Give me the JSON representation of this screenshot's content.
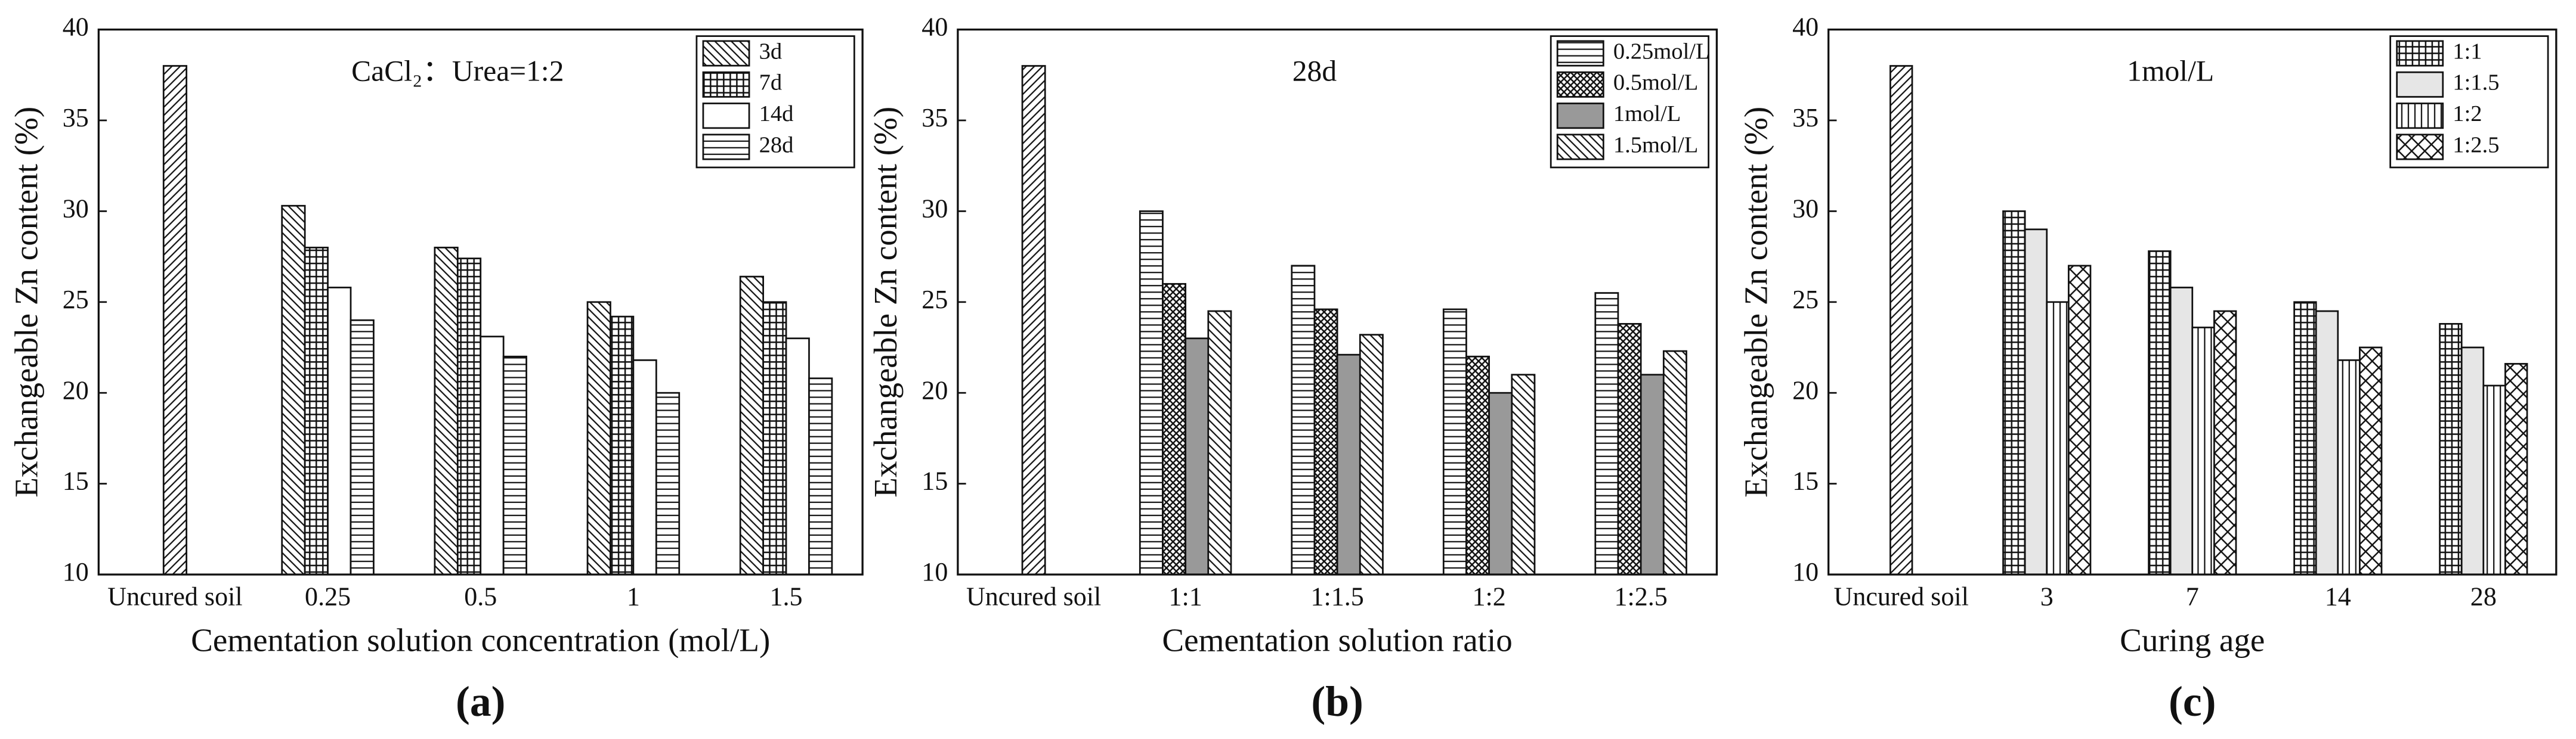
{
  "chart_data": [
    {
      "type": "bar",
      "panel": "(a)",
      "annotation": "CaCl₂：Urea=1:2",
      "x_label": "Cementation solution concentration (mol/L)",
      "y_label": "Exchangeable Zn content (%)",
      "categories": [
        "Uncured soil",
        "0.25",
        "0.5",
        "1",
        "1.5"
      ],
      "uncured_soil": 38,
      "uncured_pattern": "slash",
      "series": [
        {
          "name": "3d",
          "pattern": "backslash",
          "values": [
            null,
            30.3,
            28,
            25,
            26.4
          ]
        },
        {
          "name": "7d",
          "pattern": "grid",
          "values": [
            null,
            28,
            27.4,
            24.2,
            25
          ]
        },
        {
          "name": "14d",
          "pattern": "white",
          "values": [
            null,
            25.8,
            23.1,
            21.8,
            23
          ]
        },
        {
          "name": "28d",
          "pattern": "horizontal",
          "values": [
            null,
            24,
            22,
            20,
            20.8
          ]
        }
      ],
      "ylim": [
        10,
        40
      ],
      "yticks": [
        10,
        15,
        20,
        25,
        30,
        35,
        40
      ],
      "legend": "upper right"
    },
    {
      "type": "bar",
      "panel": "(b)",
      "annotation": "28d",
      "x_label": "Cementation solution ratio",
      "y_label": "Exchangeable Zn content (%)",
      "categories": [
        "Uncured soil",
        "1:1",
        "1:1.5",
        "1:2",
        "1:2.5"
      ],
      "uncured_soil": 38,
      "uncured_pattern": "slash",
      "series": [
        {
          "name": "0.25mol/L",
          "pattern": "horizontal",
          "values": [
            null,
            30,
            27,
            24.6,
            25.5
          ]
        },
        {
          "name": "0.5mol/L",
          "pattern": "crosshatch",
          "values": [
            null,
            26,
            24.6,
            22,
            23.8
          ]
        },
        {
          "name": "1mol/L",
          "pattern": "gray",
          "values": [
            null,
            23,
            22.1,
            20,
            21
          ]
        },
        {
          "name": "1.5mol/L",
          "pattern": "backslash",
          "values": [
            null,
            24.5,
            23.2,
            21,
            22.3
          ]
        }
      ],
      "ylim": [
        10,
        40
      ],
      "yticks": [
        10,
        15,
        20,
        25,
        30,
        35,
        40
      ],
      "legend": "upper right"
    },
    {
      "type": "bar",
      "panel": "(c)",
      "annotation": "1mol/L",
      "x_label": "Curing age",
      "y_label": "Exchangeable Zn content (%)",
      "categories": [
        "Uncured soil",
        "3",
        "7",
        "14",
        "28"
      ],
      "uncured_soil": 38,
      "uncured_pattern": "slash",
      "series": [
        {
          "name": "1:1",
          "pattern": "grid",
          "values": [
            null,
            30,
            27.8,
            25,
            23.8
          ]
        },
        {
          "name": "1:1.5",
          "pattern": "light",
          "values": [
            null,
            29,
            25.8,
            24.5,
            22.5
          ]
        },
        {
          "name": "1:2",
          "pattern": "vertical",
          "values": [
            null,
            25,
            23.6,
            21.8,
            20.4
          ]
        },
        {
          "name": "1:2.5",
          "pattern": "bigx",
          "values": [
            null,
            27,
            24.5,
            22.5,
            21.6
          ]
        }
      ],
      "ylim": [
        10,
        40
      ],
      "yticks": [
        10,
        15,
        20,
        25,
        30,
        35,
        40
      ],
      "legend": "upper right"
    }
  ]
}
